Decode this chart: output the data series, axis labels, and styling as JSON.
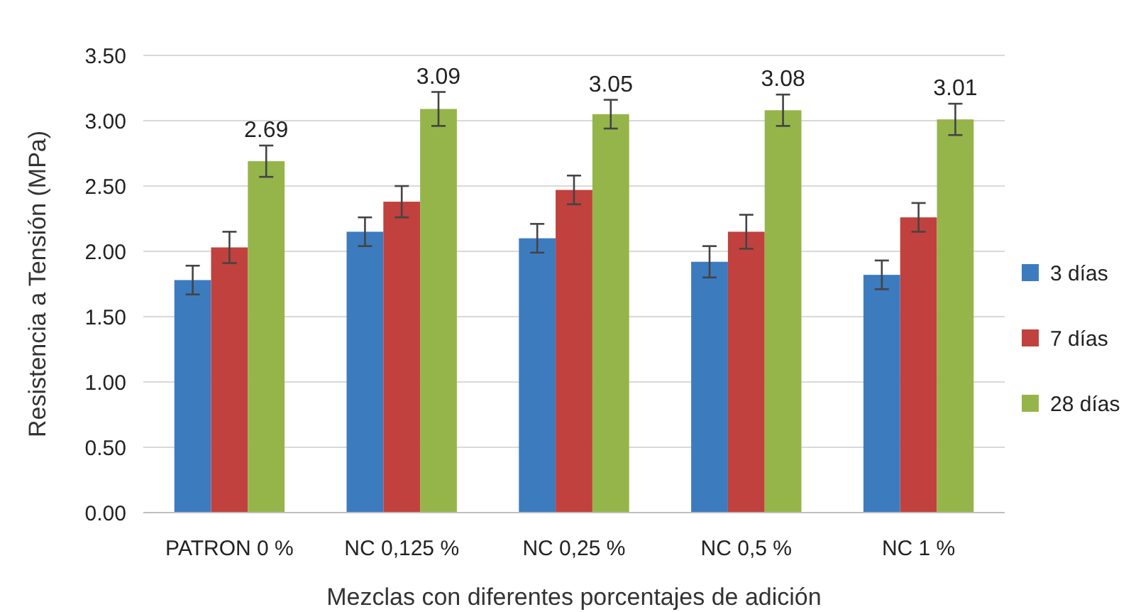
{
  "chart_data": {
    "type": "bar",
    "xlabel": "Mezclas con diferentes porcentajes de adición",
    "ylabel": "Resistencia a Tensión (MPa)",
    "categories": [
      "PATRON 0 %",
      "NC 0,125 %",
      "NC 0,25 %",
      "NC 0,5 %",
      "NC 1 %"
    ],
    "series": [
      {
        "name": "3 días",
        "color": "#3d7bbf",
        "values": [
          1.78,
          2.15,
          2.1,
          1.92,
          1.82
        ],
        "errors": [
          0.11,
          0.11,
          0.11,
          0.12,
          0.11
        ]
      },
      {
        "name": "7 días",
        "color": "#c0413d",
        "values": [
          2.03,
          2.38,
          2.47,
          2.15,
          2.26
        ],
        "errors": [
          0.12,
          0.12,
          0.11,
          0.13,
          0.11
        ]
      },
      {
        "name": "28 días",
        "color": "#95b54b",
        "values": [
          2.69,
          3.09,
          3.05,
          3.08,
          3.01
        ],
        "errors": [
          0.12,
          0.13,
          0.11,
          0.12,
          0.12
        ],
        "value_labels": [
          "2.69",
          "3.09",
          "3.05",
          "3.08",
          "3.01"
        ]
      }
    ],
    "ylim": [
      0,
      3.5
    ],
    "yticks": [
      {
        "value": 0,
        "label": "0.00"
      },
      {
        "value": 0.5,
        "label": "0.50"
      },
      {
        "value": 1,
        "label": "1.00"
      },
      {
        "value": 1.5,
        "label": "1.50"
      },
      {
        "value": 2,
        "label": "2.00"
      },
      {
        "value": 2.5,
        "label": "2.50"
      },
      {
        "value": 3,
        "label": "3.00"
      },
      {
        "value": 3.5,
        "label": "3.50"
      }
    ],
    "grid": "y",
    "legend": "right"
  }
}
